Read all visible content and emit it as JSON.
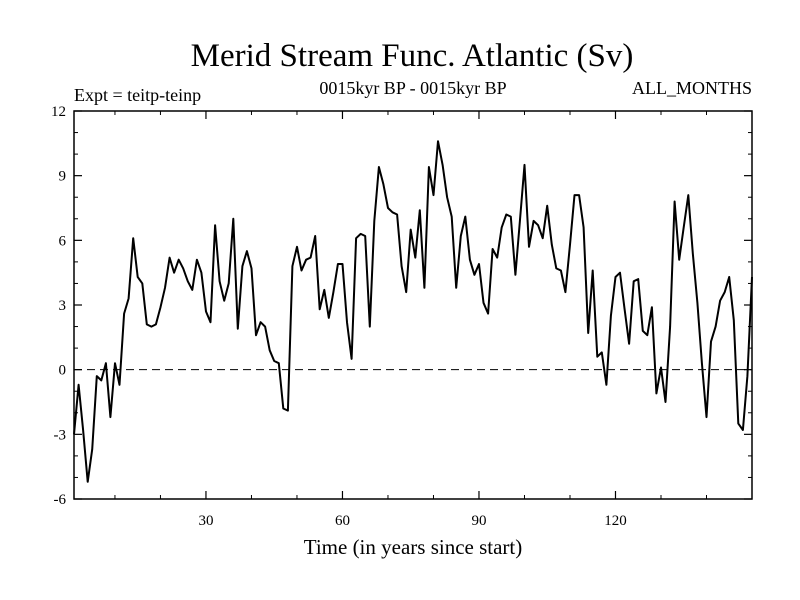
{
  "chart_data": {
    "type": "line",
    "title": "Merid Stream Func. Atlantic (Sv)",
    "expt_label": "Expt = teitp-teinp",
    "period_label": "0015kyr BP - 0015kyr BP",
    "months_label": "ALL_MONTHS",
    "xlabel": "Time (in years since start)",
    "ylabel": "",
    "xlim": [
      1,
      150
    ],
    "ylim": [
      -6,
      12
    ],
    "xticks": [
      30,
      60,
      90,
      120
    ],
    "yticks": [
      -6,
      -3,
      0,
      3,
      6,
      9,
      12
    ],
    "ytick_labels": [
      "-6",
      "-3",
      "0",
      "3",
      "6",
      "9",
      "12"
    ],
    "xtick_labels": [
      "30",
      "60",
      "90",
      "120"
    ],
    "zero_line": "dashed",
    "series": [
      {
        "name": "Merid Stream Func. Atlantic",
        "x": [
          1,
          2,
          3,
          4,
          5,
          6,
          7,
          8,
          9,
          10,
          11,
          12,
          13,
          14,
          15,
          16,
          17,
          18,
          19,
          20,
          21,
          22,
          23,
          24,
          25,
          26,
          27,
          28,
          29,
          30,
          31,
          32,
          33,
          34,
          35,
          36,
          37,
          38,
          39,
          40,
          41,
          42,
          43,
          44,
          45,
          46,
          47,
          48,
          49,
          50,
          51,
          52,
          53,
          54,
          55,
          56,
          57,
          58,
          59,
          60,
          61,
          62,
          63,
          64,
          65,
          66,
          67,
          68,
          69,
          70,
          71,
          72,
          73,
          74,
          75,
          76,
          77,
          78,
          79,
          80,
          81,
          82,
          83,
          84,
          85,
          86,
          87,
          88,
          89,
          90,
          91,
          92,
          93,
          94,
          95,
          96,
          97,
          98,
          99,
          100,
          101,
          102,
          103,
          104,
          105,
          106,
          107,
          108,
          109,
          110,
          111,
          112,
          113,
          114,
          115,
          116,
          117,
          118,
          119,
          120,
          121,
          122,
          123,
          124,
          125,
          126,
          127,
          128,
          129,
          130,
          131,
          132,
          133,
          134,
          135,
          136,
          137,
          138,
          139,
          140,
          141,
          142,
          143,
          144,
          145,
          146,
          147,
          148,
          149,
          150
        ],
        "values": [
          -3.0,
          -0.7,
          -2.8,
          -5.2,
          -3.7,
          -0.3,
          -0.5,
          0.3,
          -2.2,
          0.3,
          -0.7,
          2.6,
          3.3,
          6.1,
          4.3,
          4.0,
          2.1,
          2.0,
          2.1,
          2.9,
          3.8,
          5.2,
          4.5,
          5.1,
          4.7,
          4.1,
          3.7,
          5.1,
          4.5,
          2.7,
          2.2,
          6.7,
          4.1,
          3.2,
          4.0,
          7.0,
          1.9,
          4.8,
          5.5,
          4.7,
          1.6,
          2.2,
          2.0,
          0.9,
          0.4,
          0.3,
          -1.8,
          -1.9,
          4.8,
          5.7,
          4.6,
          5.1,
          5.2,
          6.2,
          2.8,
          3.7,
          2.4,
          3.6,
          4.9,
          4.9,
          2.2,
          0.5,
          6.1,
          6.3,
          6.2,
          2.0,
          6.9,
          9.4,
          8.6,
          7.5,
          7.3,
          7.2,
          4.8,
          3.6,
          6.5,
          5.2,
          7.4,
          3.8,
          9.4,
          8.1,
          10.6,
          9.5,
          8.0,
          7.1,
          3.8,
          6.2,
          7.1,
          5.1,
          4.4,
          4.9,
          3.1,
          2.6,
          5.6,
          5.2,
          6.6,
          7.2,
          7.1,
          4.4,
          6.9,
          9.5,
          5.7,
          6.9,
          6.7,
          6.1,
          7.6,
          5.8,
          4.7,
          4.6,
          3.6,
          5.8,
          8.1,
          8.1,
          6.6,
          1.7,
          4.6,
          0.6,
          0.8,
          -0.7,
          2.5,
          4.3,
          4.5,
          2.8,
          1.2,
          4.1,
          4.2,
          1.8,
          1.6,
          2.9,
          -1.1,
          0.1,
          -1.5,
          2.0,
          7.8,
          5.1,
          6.6,
          8.1,
          5.4,
          3.1,
          0.3,
          -2.2,
          1.3,
          2.0,
          3.2,
          3.6,
          4.3,
          2.3,
          -2.5,
          -2.8,
          -0.3,
          4.3
        ]
      }
    ]
  }
}
